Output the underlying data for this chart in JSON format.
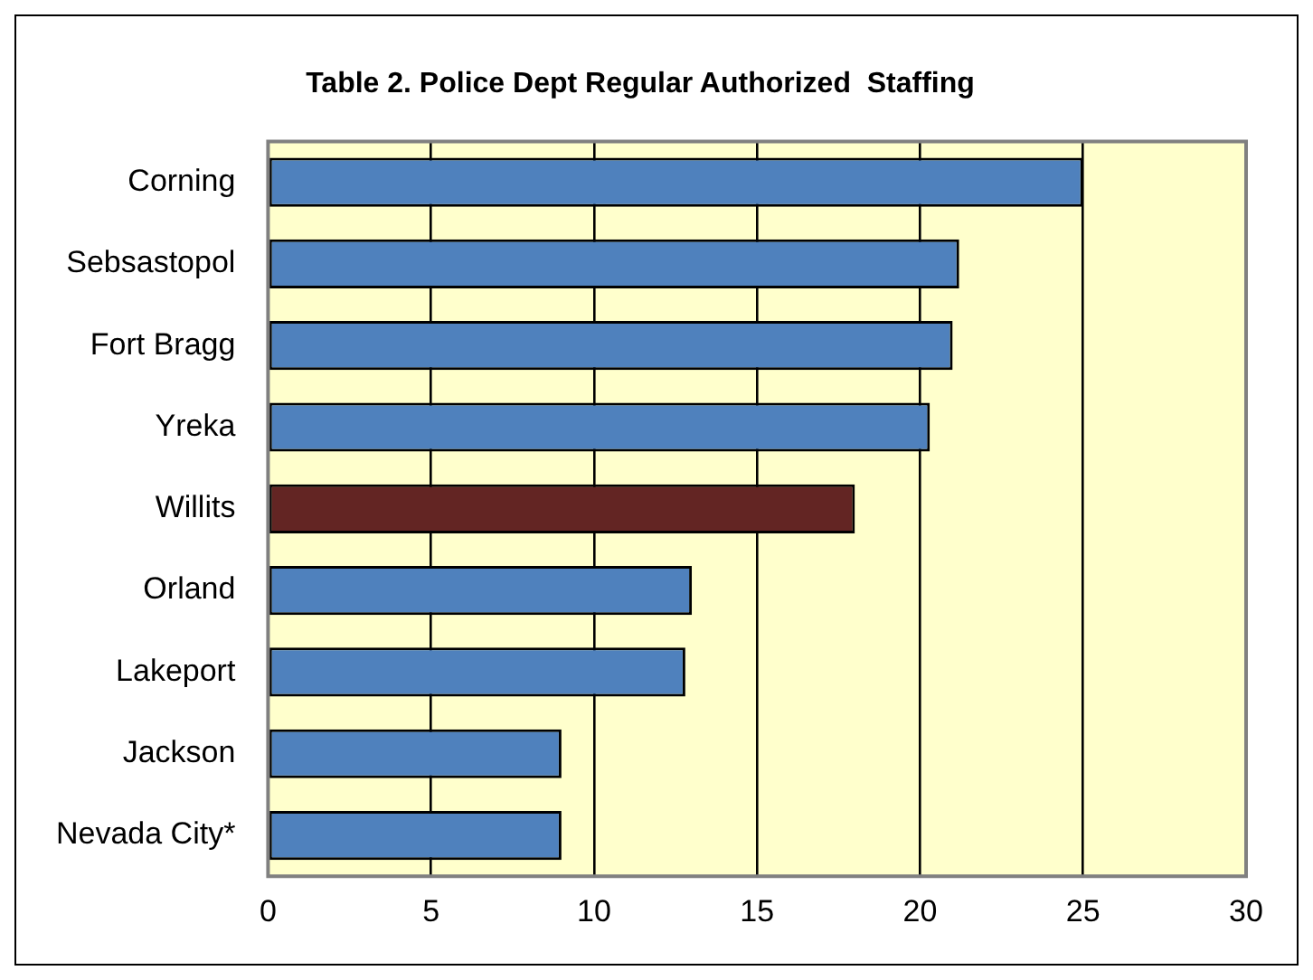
{
  "chart_data": {
    "type": "bar",
    "orientation": "horizontal",
    "title": "Table 2. Police Dept Regular Authorized  Staffing",
    "categories": [
      "Corning",
      "Sebsastopol",
      "Fort Bragg",
      "Yreka",
      "Willits",
      "Orland",
      "Lakeport",
      "Jackson",
      "Nevada City*"
    ],
    "values": [
      25,
      21.2,
      21,
      20.3,
      18,
      13,
      12.8,
      9,
      9
    ],
    "colors": [
      "#4f81bd",
      "#4f81bd",
      "#4f81bd",
      "#4f81bd",
      "#632523",
      "#4f81bd",
      "#4f81bd",
      "#4f81bd",
      "#4f81bd"
    ],
    "xlim": [
      0,
      30
    ],
    "xticks": [
      0,
      5,
      10,
      15,
      20,
      25,
      30
    ],
    "grid": "x",
    "legend": false
  }
}
